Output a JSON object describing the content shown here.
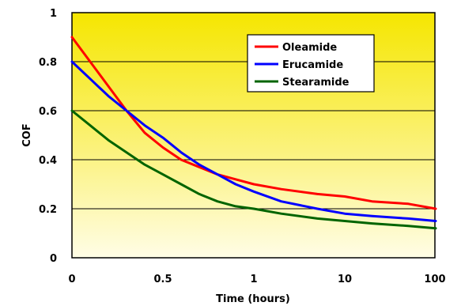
{
  "chart_data": {
    "type": "line",
    "title": "",
    "xlabel": "Time (hours)",
    "ylabel": "COF",
    "x_tick_labels": [
      "0",
      "0.5",
      "1",
      "10",
      "100"
    ],
    "y_tick_labels": [
      "0",
      "0.2",
      "0.4",
      "0.6",
      "0.8",
      "1"
    ],
    "ylim": [
      0,
      1
    ],
    "x_scale": "piecewise: linear 0–1, log 1–100",
    "grid": "horizontal",
    "background": "yellow gradient",
    "legend_position": "top-right",
    "series": [
      {
        "name": "Oleamide",
        "color": "#ff0000",
        "x": [
          0,
          0.1,
          0.2,
          0.3,
          0.4,
          0.5,
          0.6,
          0.7,
          0.8,
          0.9,
          1,
          2,
          5,
          10,
          20,
          50,
          100
        ],
        "y": [
          0.9,
          0.8,
          0.7,
          0.6,
          0.51,
          0.45,
          0.4,
          0.37,
          0.34,
          0.32,
          0.3,
          0.28,
          0.26,
          0.25,
          0.23,
          0.22,
          0.2
        ]
      },
      {
        "name": "Erucamide",
        "color": "#0000ff",
        "x": [
          0,
          0.1,
          0.2,
          0.3,
          0.4,
          0.5,
          0.6,
          0.7,
          0.8,
          0.9,
          1,
          2,
          5,
          10,
          20,
          50,
          100
        ],
        "y": [
          0.8,
          0.73,
          0.66,
          0.6,
          0.54,
          0.49,
          0.43,
          0.38,
          0.34,
          0.3,
          0.27,
          0.23,
          0.2,
          0.18,
          0.17,
          0.16,
          0.15
        ]
      },
      {
        "name": "Stearamide",
        "color": "#006400",
        "x": [
          0,
          0.1,
          0.2,
          0.3,
          0.4,
          0.5,
          0.6,
          0.7,
          0.8,
          0.9,
          1,
          2,
          5,
          10,
          20,
          50,
          100
        ],
        "y": [
          0.6,
          0.54,
          0.48,
          0.43,
          0.38,
          0.34,
          0.3,
          0.26,
          0.23,
          0.21,
          0.2,
          0.18,
          0.16,
          0.15,
          0.14,
          0.13,
          0.12
        ]
      }
    ]
  }
}
